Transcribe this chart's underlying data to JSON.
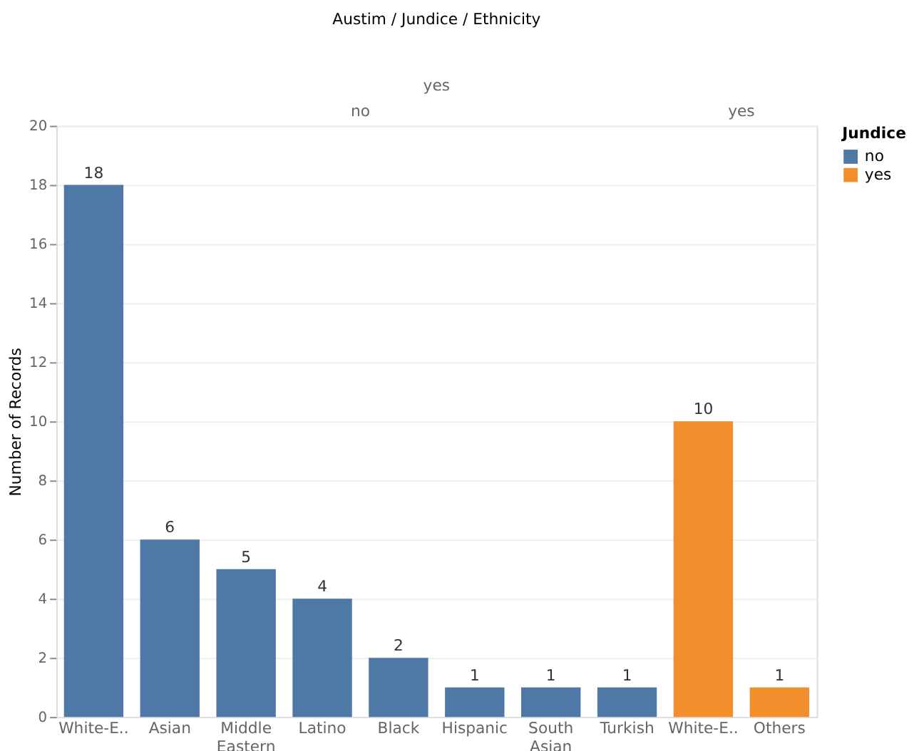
{
  "chart_data": {
    "type": "bar",
    "title": "Austim / Jundice / Ethnicity",
    "ylabel": "Number of Records",
    "legend_title": "Jundice",
    "categories": [
      "White-E..",
      "Asian",
      "Middle Eastern",
      "Latino",
      "Black",
      "Hispanic",
      "South Asian",
      "Turkish",
      "White-E..",
      "Others"
    ],
    "series": [
      {
        "name": "no",
        "color": "#4e79a7",
        "values": [
          18,
          6,
          5,
          4,
          2,
          1,
          1,
          1,
          null,
          null
        ]
      },
      {
        "name": "yes",
        "color": "#f28e2b",
        "values": [
          null,
          null,
          null,
          null,
          null,
          null,
          null,
          null,
          10,
          1
        ]
      }
    ],
    "annotations": [
      "yes",
      "no",
      "yes"
    ],
    "ylim": [
      0,
      20
    ],
    "yticks": [
      0,
      2,
      4,
      6,
      8,
      10,
      12,
      14,
      16,
      18,
      20
    ],
    "grid": "y",
    "data_labels": true,
    "legend": "top right"
  }
}
